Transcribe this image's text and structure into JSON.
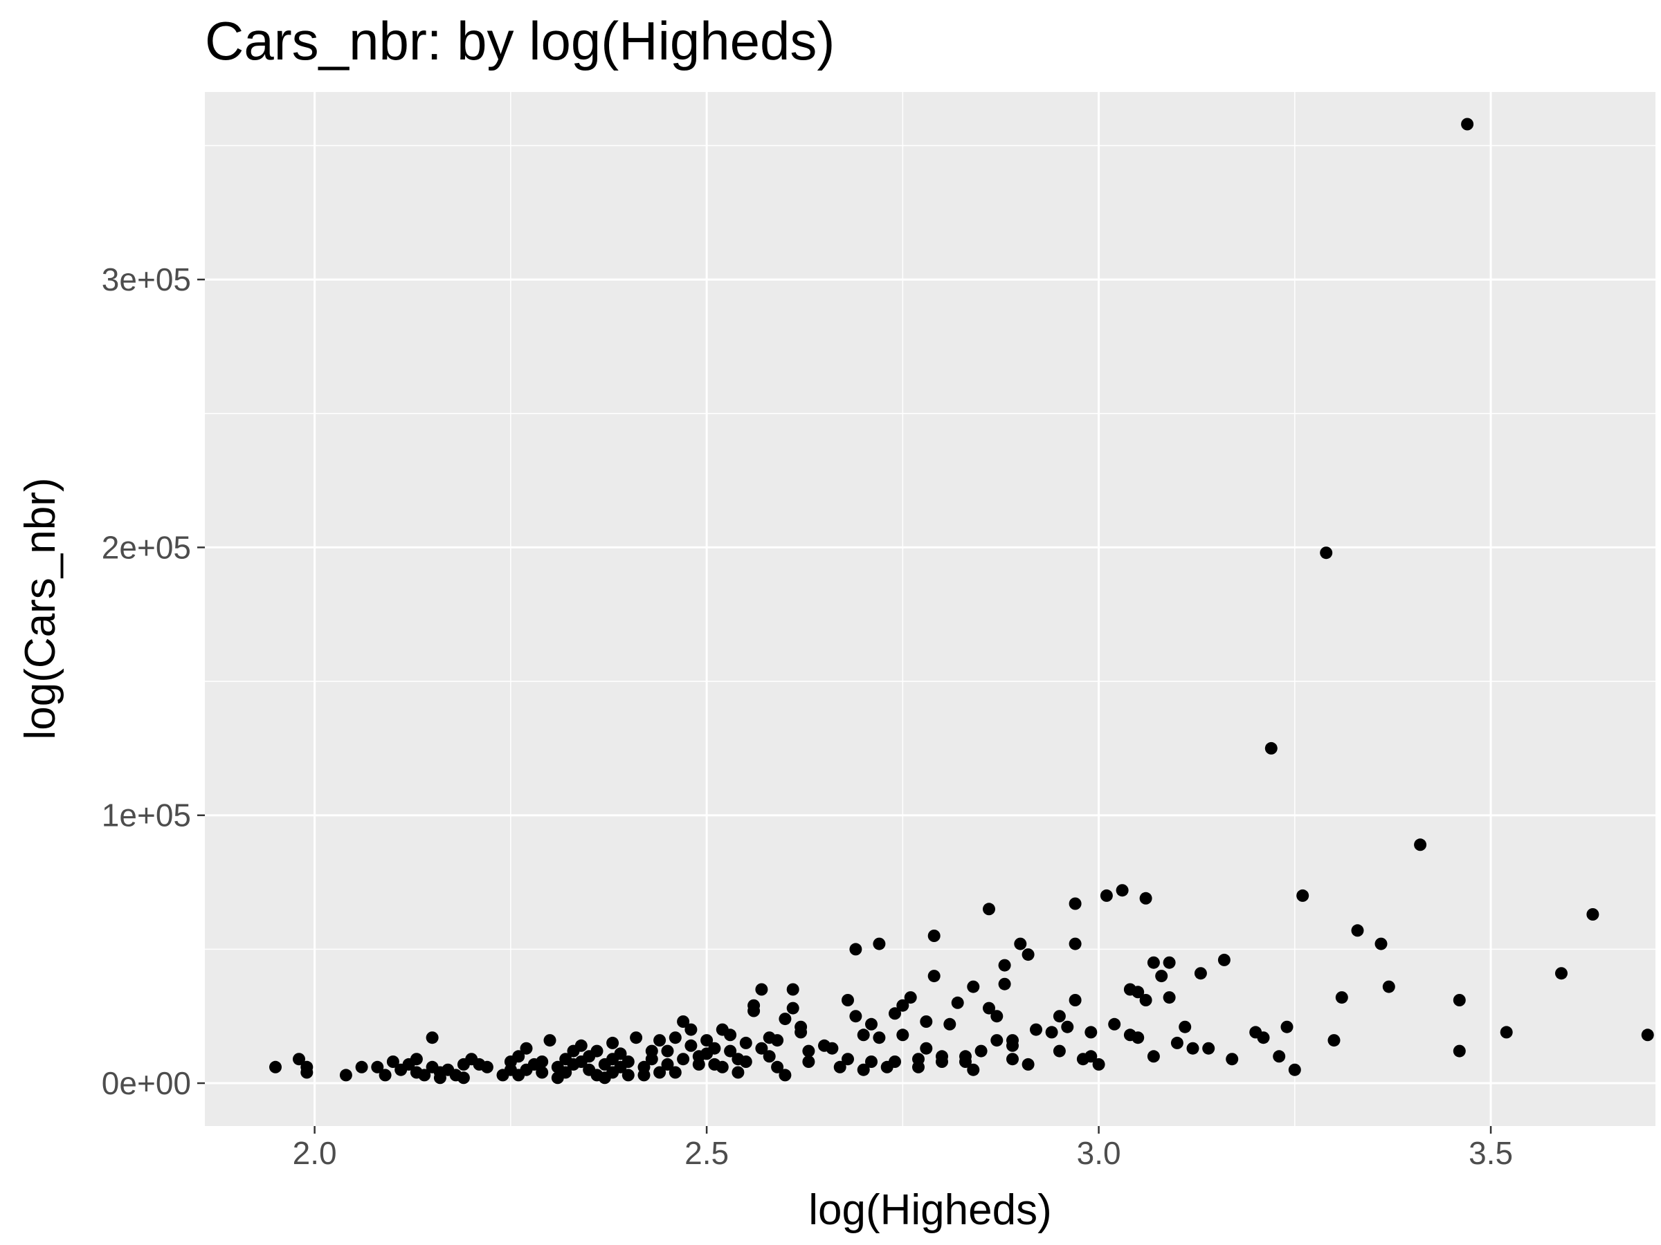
{
  "chart_data": {
    "type": "scatter",
    "title": "Cars_nbr: by log(Higheds)",
    "xlabel": "log(Higheds)",
    "ylabel": "log(Cars_nbr)",
    "xlim": [
      1.86,
      3.71
    ],
    "ylim": [
      -16000,
      370000
    ],
    "x_ticks": [
      2.0,
      2.5,
      3.0,
      3.5
    ],
    "x_tick_labels": [
      "2.0",
      "2.5",
      "3.0",
      "3.5"
    ],
    "y_ticks": [
      0,
      100000,
      200000,
      300000
    ],
    "y_tick_labels": [
      "0e+00",
      "1e+05",
      "2e+05",
      "3e+05"
    ],
    "grid": true,
    "legend": "none",
    "colors": {
      "panel": "#ebebeb",
      "grid": "#ffffff",
      "point": "#000000",
      "tick": "#333333",
      "tick_text": "#4d4d4d"
    },
    "points": [
      [
        1.95,
        6000
      ],
      [
        1.98,
        9000
      ],
      [
        1.99,
        6000
      ],
      [
        1.99,
        4000
      ],
      [
        2.04,
        3000
      ],
      [
        2.06,
        6000
      ],
      [
        2.08,
        6000
      ],
      [
        2.09,
        3000
      ],
      [
        2.1,
        8000
      ],
      [
        2.11,
        5000
      ],
      [
        2.12,
        7000
      ],
      [
        2.13,
        4000
      ],
      [
        2.13,
        9000
      ],
      [
        2.14,
        3000
      ],
      [
        2.15,
        6000
      ],
      [
        2.15,
        17000
      ],
      [
        2.16,
        4000
      ],
      [
        2.16,
        2000
      ],
      [
        2.17,
        5000
      ],
      [
        2.18,
        3000
      ],
      [
        2.19,
        7000
      ],
      [
        2.19,
        2000
      ],
      [
        2.2,
        9000
      ],
      [
        2.21,
        7000
      ],
      [
        2.22,
        6000
      ],
      [
        2.24,
        3000
      ],
      [
        2.25,
        5000
      ],
      [
        2.25,
        8000
      ],
      [
        2.26,
        3000
      ],
      [
        2.26,
        10000
      ],
      [
        2.27,
        5000
      ],
      [
        2.27,
        13000
      ],
      [
        2.28,
        7000
      ],
      [
        2.29,
        4000
      ],
      [
        2.29,
        8000
      ],
      [
        2.3,
        16000
      ],
      [
        2.31,
        6000
      ],
      [
        2.31,
        2000
      ],
      [
        2.32,
        9000
      ],
      [
        2.32,
        4000
      ],
      [
        2.33,
        12000
      ],
      [
        2.33,
        7000
      ],
      [
        2.34,
        8000
      ],
      [
        2.34,
        14000
      ],
      [
        2.35,
        5000
      ],
      [
        2.35,
        10000
      ],
      [
        2.36,
        3000
      ],
      [
        2.36,
        12000
      ],
      [
        2.37,
        7000
      ],
      [
        2.37,
        2000
      ],
      [
        2.38,
        15000
      ],
      [
        2.38,
        9000
      ],
      [
        2.38,
        4000
      ],
      [
        2.39,
        6000
      ],
      [
        2.39,
        11000
      ],
      [
        2.4,
        3000
      ],
      [
        2.4,
        8000
      ],
      [
        2.41,
        17000
      ],
      [
        2.42,
        6000
      ],
      [
        2.42,
        3000
      ],
      [
        2.43,
        12000
      ],
      [
        2.43,
        9000
      ],
      [
        2.44,
        4000
      ],
      [
        2.44,
        16000
      ],
      [
        2.45,
        12000
      ],
      [
        2.45,
        7000
      ],
      [
        2.46,
        17000
      ],
      [
        2.46,
        4000
      ],
      [
        2.47,
        23000
      ],
      [
        2.47,
        9000
      ],
      [
        2.48,
        14000
      ],
      [
        2.48,
        20000
      ],
      [
        2.49,
        10000
      ],
      [
        2.49,
        7000
      ],
      [
        2.5,
        16000
      ],
      [
        2.5,
        11000
      ],
      [
        2.51,
        13000
      ],
      [
        2.51,
        7000
      ],
      [
        2.52,
        20000
      ],
      [
        2.52,
        6000
      ],
      [
        2.53,
        18000
      ],
      [
        2.53,
        12000
      ],
      [
        2.54,
        9000
      ],
      [
        2.54,
        4000
      ],
      [
        2.55,
        15000
      ],
      [
        2.55,
        8000
      ],
      [
        2.56,
        27000
      ],
      [
        2.56,
        29000
      ],
      [
        2.57,
        35000
      ],
      [
        2.57,
        13000
      ],
      [
        2.58,
        17000
      ],
      [
        2.58,
        10000
      ],
      [
        2.59,
        16000
      ],
      [
        2.59,
        6000
      ],
      [
        2.6,
        24000
      ],
      [
        2.6,
        3000
      ],
      [
        2.61,
        28000
      ],
      [
        2.61,
        35000
      ],
      [
        2.62,
        21000
      ],
      [
        2.62,
        19000
      ],
      [
        2.63,
        8000
      ],
      [
        2.63,
        12000
      ],
      [
        2.65,
        14000
      ],
      [
        2.66,
        13000
      ],
      [
        2.67,
        6000
      ],
      [
        2.68,
        31000
      ],
      [
        2.68,
        9000
      ],
      [
        2.69,
        25000
      ],
      [
        2.69,
        50000
      ],
      [
        2.7,
        18000
      ],
      [
        2.7,
        5000
      ],
      [
        2.71,
        8000
      ],
      [
        2.71,
        22000
      ],
      [
        2.72,
        52000
      ],
      [
        2.72,
        17000
      ],
      [
        2.73,
        6000
      ],
      [
        2.74,
        26000
      ],
      [
        2.74,
        8000
      ],
      [
        2.75,
        18000
      ],
      [
        2.75,
        29000
      ],
      [
        2.76,
        32000
      ],
      [
        2.77,
        6000
      ],
      [
        2.77,
        9000
      ],
      [
        2.78,
        23000
      ],
      [
        2.78,
        13000
      ],
      [
        2.79,
        40000
      ],
      [
        2.79,
        55000
      ],
      [
        2.8,
        8000
      ],
      [
        2.8,
        10000
      ],
      [
        2.81,
        22000
      ],
      [
        2.82,
        30000
      ],
      [
        2.83,
        10000
      ],
      [
        2.83,
        8000
      ],
      [
        2.84,
        36000
      ],
      [
        2.84,
        5000
      ],
      [
        2.85,
        12000
      ],
      [
        2.86,
        65000
      ],
      [
        2.86,
        28000
      ],
      [
        2.87,
        16000
      ],
      [
        2.87,
        25000
      ],
      [
        2.88,
        37000
      ],
      [
        2.88,
        44000
      ],
      [
        2.89,
        16000
      ],
      [
        2.89,
        14000
      ],
      [
        2.89,
        9000
      ],
      [
        2.9,
        52000
      ],
      [
        2.91,
        48000
      ],
      [
        2.91,
        7000
      ],
      [
        2.92,
        20000
      ],
      [
        2.94,
        19000
      ],
      [
        2.95,
        25000
      ],
      [
        2.95,
        12000
      ],
      [
        2.96,
        21000
      ],
      [
        2.97,
        67000
      ],
      [
        2.97,
        31000
      ],
      [
        2.97,
        52000
      ],
      [
        2.98,
        9000
      ],
      [
        2.99,
        10000
      ],
      [
        2.99,
        19000
      ],
      [
        3.0,
        7000
      ],
      [
        3.01,
        70000
      ],
      [
        3.02,
        22000
      ],
      [
        3.03,
        72000
      ],
      [
        3.04,
        35000
      ],
      [
        3.04,
        18000
      ],
      [
        3.05,
        17000
      ],
      [
        3.05,
        34000
      ],
      [
        3.06,
        31000
      ],
      [
        3.06,
        69000
      ],
      [
        3.07,
        45000
      ],
      [
        3.07,
        10000
      ],
      [
        3.08,
        40000
      ],
      [
        3.09,
        32000
      ],
      [
        3.09,
        45000
      ],
      [
        3.1,
        15000
      ],
      [
        3.11,
        21000
      ],
      [
        3.12,
        13000
      ],
      [
        3.13,
        41000
      ],
      [
        3.14,
        13000
      ],
      [
        3.16,
        46000
      ],
      [
        3.17,
        9000
      ],
      [
        3.2,
        19000
      ],
      [
        3.21,
        17000
      ],
      [
        3.22,
        125000
      ],
      [
        3.23,
        10000
      ],
      [
        3.24,
        21000
      ],
      [
        3.25,
        5000
      ],
      [
        3.26,
        70000
      ],
      [
        3.29,
        198000
      ],
      [
        3.3,
        16000
      ],
      [
        3.31,
        32000
      ],
      [
        3.33,
        57000
      ],
      [
        3.36,
        52000
      ],
      [
        3.37,
        36000
      ],
      [
        3.41,
        89000
      ],
      [
        3.46,
        12000
      ],
      [
        3.46,
        31000
      ],
      [
        3.47,
        358000
      ],
      [
        3.52,
        19000
      ],
      [
        3.59,
        41000
      ],
      [
        3.63,
        63000
      ],
      [
        3.7,
        18000
      ]
    ]
  }
}
